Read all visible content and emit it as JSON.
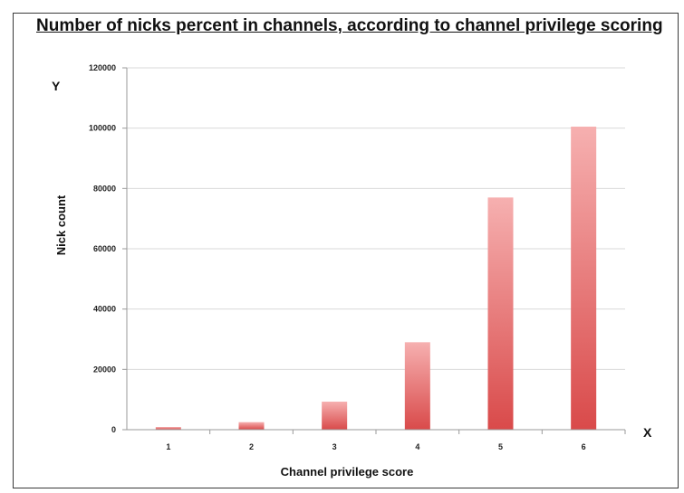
{
  "chart_data": {
    "type": "bar",
    "title": "Number of nicks percent in channels, according to channel privilege scoring",
    "xlabel": "Channel privilege score",
    "ylabel": "Nick count",
    "x_axis_marker": "X",
    "y_axis_marker": "Y",
    "categories": [
      "1",
      "2",
      "3",
      "4",
      "5",
      "6"
    ],
    "values": [
      900,
      2500,
      9300,
      29000,
      77000,
      100500
    ],
    "ylim": [
      0,
      120000
    ],
    "yticks": [
      0,
      20000,
      40000,
      60000,
      80000,
      100000,
      120000
    ],
    "grid": true,
    "legend": "none",
    "colors": {
      "bar_top": "#f6b0b0",
      "bar_bottom": "#d94a4a",
      "grid": "#d9d9d9",
      "axis": "#9a9a9a"
    }
  }
}
